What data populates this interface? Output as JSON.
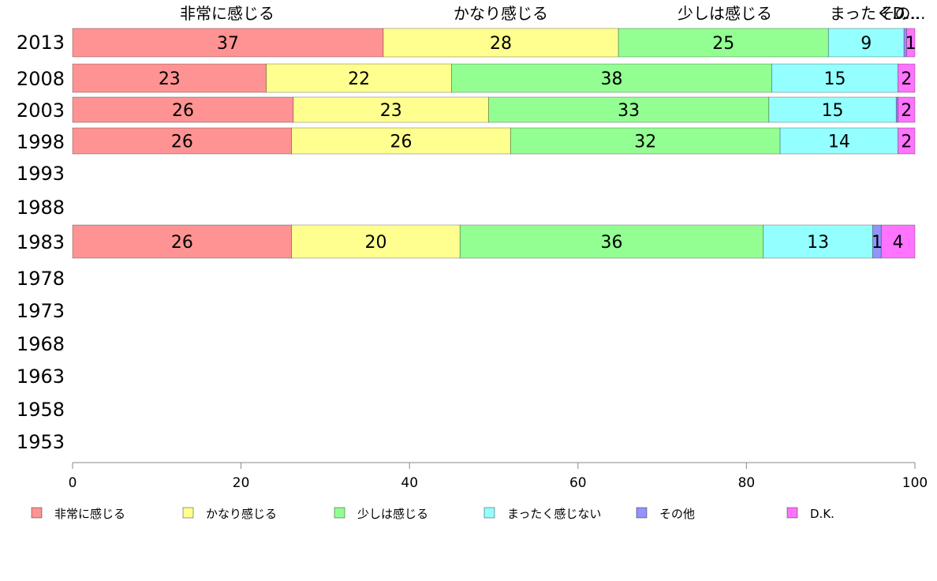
{
  "chart_data": {
    "type": "bar",
    "orientation": "horizontal-stacked",
    "categories": [
      "2013",
      "2008",
      "2003",
      "1998",
      "1993",
      "1988",
      "1983",
      "1978",
      "1973",
      "1968",
      "1963",
      "1958",
      "1953"
    ],
    "series": [
      {
        "name": "非常に感じる",
        "color": "#ff9393",
        "values": [
          37,
          23,
          26,
          26,
          null,
          null,
          26,
          null,
          null,
          null,
          null,
          null,
          null
        ]
      },
      {
        "name": "かなり感じる",
        "color": "#ffff8f",
        "values": [
          28,
          22,
          23,
          26,
          null,
          null,
          20,
          null,
          null,
          null,
          null,
          null,
          null
        ]
      },
      {
        "name": "少しは感じる",
        "color": "#93ff93",
        "values": [
          25,
          38,
          33,
          32,
          null,
          null,
          36,
          null,
          null,
          null,
          null,
          null,
          null
        ]
      },
      {
        "name": "まったく感じない",
        "color": "#93ffff",
        "values": [
          9,
          15,
          15,
          14,
          null,
          null,
          13,
          null,
          null,
          null,
          null,
          null,
          null
        ]
      },
      {
        "name": "その他",
        "color": "#9393ff",
        "values": [
          0.3,
          0,
          0.2,
          0,
          null,
          null,
          1,
          null,
          null,
          null,
          null,
          null,
          null
        ]
      },
      {
        "name": "D.K.",
        "color": "#ff73ff",
        "values": [
          1,
          2,
          2,
          2,
          null,
          null,
          4,
          null,
          null,
          null,
          null,
          null,
          null
        ]
      }
    ],
    "data_labels": [
      [
        "37",
        "28",
        "25",
        "9",
        "",
        "1"
      ],
      [
        "23",
        "22",
        "38",
        "15",
        "",
        "2"
      ],
      [
        "26",
        "23",
        "33",
        "15",
        "",
        "2"
      ],
      [
        "26",
        "26",
        "32",
        "14",
        "",
        "2"
      ],
      [],
      [],
      [
        "26",
        "20",
        "36",
        "13",
        "1",
        "4"
      ],
      [],
      [],
      [],
      [],
      [],
      []
    ],
    "top_labels": [
      "非常に感じる",
      "かなり感じる",
      "少しは感じる",
      "まったく...",
      "その...",
      "D..."
    ],
    "xlim": [
      0,
      100
    ],
    "xticks": [
      "0",
      "20",
      "40",
      "60",
      "80",
      "100"
    ],
    "grid": false,
    "legend": {
      "placement": "bottom",
      "items": [
        "非常に感じる",
        "かなり感じる",
        "少しは感じる",
        "まったく感じない",
        "その他",
        "D.K."
      ]
    }
  }
}
